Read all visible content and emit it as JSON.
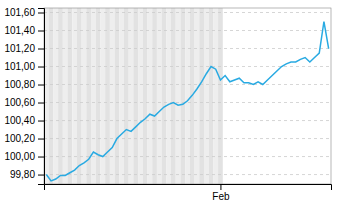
{
  "chart_data": {
    "type": "line",
    "categories": [
      null,
      null,
      null,
      null,
      null,
      null,
      null,
      null,
      null,
      null,
      null,
      null,
      null,
      null,
      null,
      null,
      null,
      null,
      null,
      null,
      null,
      null,
      null,
      null,
      null,
      null,
      null,
      null,
      null,
      null,
      null,
      null,
      null,
      null,
      null,
      null,
      null,
      "Feb",
      null,
      null,
      null,
      null,
      null,
      null,
      null,
      null,
      null,
      null,
      null,
      null,
      null,
      null,
      null,
      null,
      null,
      null,
      null,
      null,
      null,
      null,
      null
    ],
    "values": [
      99.8,
      99.73,
      99.75,
      99.79,
      99.79,
      99.82,
      99.85,
      99.9,
      99.93,
      99.97,
      100.05,
      100.02,
      100.0,
      100.05,
      100.1,
      100.2,
      100.25,
      100.3,
      100.28,
      100.33,
      100.38,
      100.42,
      100.47,
      100.45,
      100.5,
      100.55,
      100.58,
      100.6,
      100.57,
      100.58,
      100.62,
      100.68,
      100.75,
      100.83,
      100.92,
      101.0,
      100.97,
      100.85,
      100.9,
      100.83,
      100.85,
      100.87,
      100.82,
      100.82,
      100.8,
      100.83,
      100.8,
      100.85,
      100.9,
      100.95,
      101.0,
      101.03,
      101.05,
      101.05,
      101.08,
      101.1,
      101.05,
      101.1,
      101.15,
      101.5,
      101.2
    ],
    "color": "#29aae2",
    "ylim": [
      99.695,
      101.65
    ],
    "yticks": [
      {
        "value": 99.8,
        "label": "99,80"
      },
      {
        "value": 100.0,
        "label": "100,00"
      },
      {
        "value": 100.2,
        "label": "100,20"
      },
      {
        "value": 100.4,
        "label": "100,40"
      },
      {
        "value": 100.6,
        "label": "100,60"
      },
      {
        "value": 100.8,
        "label": "100,80"
      },
      {
        "value": 101.0,
        "label": "101,00"
      },
      {
        "value": 101.2,
        "label": "101,20"
      },
      {
        "value": 101.4,
        "label": "101,40"
      },
      {
        "value": 101.6,
        "label": "101,60"
      }
    ],
    "grid": true
  }
}
